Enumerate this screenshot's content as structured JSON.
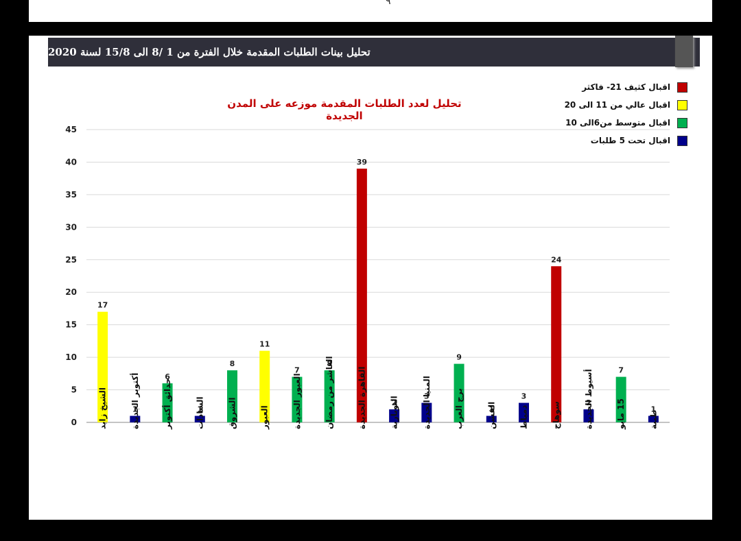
{
  "top_glyph": "٩",
  "header": {
    "title": "تحليل بينات الطلبات المقدمة خلال الفترة من 1 /8 الى 15/8  لسنة 2020"
  },
  "legend": [
    {
      "label": "اقبال كثيف 21- فاكثر",
      "color": "#c00000"
    },
    {
      "label": "اقبال عالي من 11 الى 20",
      "color": "#ffff00"
    },
    {
      "label": "اقبال متوسط من6الى 10",
      "color": "#00b050"
    },
    {
      "label": "اقبال تحت 5 طلبات",
      "color": "#00008b"
    }
  ],
  "chart_data": {
    "type": "bar",
    "title": "تحليل لعدد الطلبات المقدمة موزعه على المدن الجديدة",
    "xlabel": "",
    "ylabel": "",
    "ylim": [
      0,
      45
    ],
    "yticks": [
      0,
      5,
      10,
      15,
      20,
      25,
      30,
      35,
      40,
      45
    ],
    "grid": true,
    "legend_position": "top-right",
    "categories": [
      "الشيخ زايد",
      "أكتوبر الجديدة",
      "حدائق أكتوبر",
      "السادات",
      "الشروق",
      "العبور",
      "العبور الجديدة",
      "العاشر من رمضان",
      "القاهرة الجديدة",
      "النوبارية",
      "المنيا الجديدة",
      "برج العرب",
      "الفشن",
      "دمياط",
      "سوهاج",
      "أسيوط الجديدة",
      "15 مايو",
      "طيبة"
    ],
    "values": [
      17,
      1,
      6,
      1,
      8,
      11,
      7,
      8,
      39,
      2,
      3,
      9,
      1,
      3,
      24,
      2,
      7,
      1
    ],
    "bar_colors": [
      "#ffff00",
      "#00008b",
      "#00b050",
      "#00008b",
      "#00b050",
      "#ffff00",
      "#00b050",
      "#00b050",
      "#c00000",
      "#00008b",
      "#00008b",
      "#00b050",
      "#00008b",
      "#00008b",
      "#c00000",
      "#00008b",
      "#00b050",
      "#00008b"
    ]
  }
}
